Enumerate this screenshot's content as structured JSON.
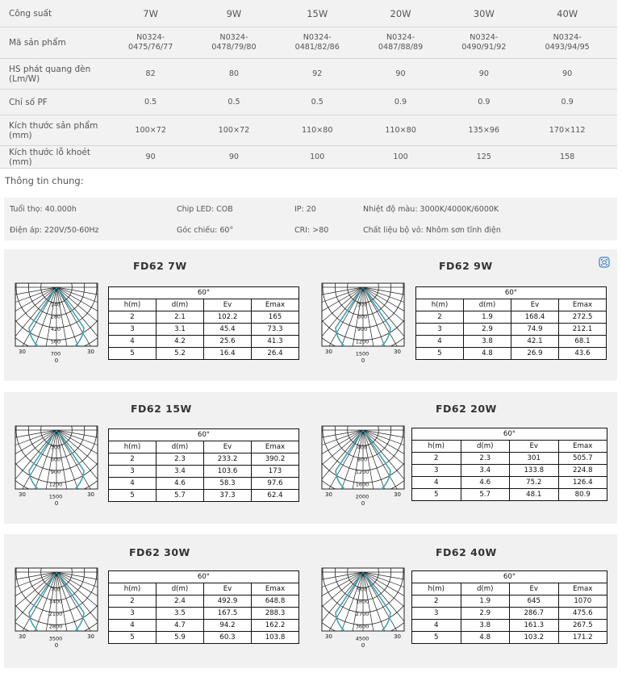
{
  "spec_table": {
    "header_label": "Công suất",
    "powers": [
      "7W",
      "9W",
      "15W",
      "20W",
      "30W",
      "40W"
    ],
    "rows": [
      {
        "label": "Mã sản phẩm",
        "values": [
          "N0324-\n0475/76/77",
          "N0324-\n0478/79/80",
          "N0324-\n0481/82/86",
          "N0324-\n0487/88/89",
          "N0324-\n0490/91/92",
          "N0324-\n0493/94/95"
        ]
      },
      {
        "label": "HS phát quang đèn\n(Lm/W)",
        "values": [
          "82",
          "80",
          "92",
          "90",
          "90",
          "90"
        ]
      },
      {
        "label": "Chỉ số PF",
        "values": [
          "0.5",
          "0.5",
          "0.5",
          "0.9",
          "0.9",
          "0.9"
        ]
      },
      {
        "label": "Kích thước sản phẩm\n(mm)",
        "values": [
          "100×72",
          "100×72",
          "110×80",
          "110×80",
          "135×96",
          "170×112"
        ]
      },
      {
        "label": "Kích thước lỗ khoét (mm)",
        "values": [
          "90",
          "90",
          "100",
          "100",
          "125",
          "158"
        ]
      }
    ]
  },
  "general": {
    "title": "Thông tin chung:",
    "lifetime": "Tuổi thọ: 40.000h",
    "chip": "Chip LED: COB",
    "ip": "IP: 20",
    "color_temp": "Nhiệt độ màu: 3000K/4000K/6000K",
    "voltage": "Điện áp: 220V/50-60Hz",
    "beam_angle": "Góc chiếu: 60°",
    "cri": "CRI: >80",
    "material": "Chất liệu bộ vỏ: Nhôm sơn tĩnh điện"
  },
  "icons": {
    "share": "share-icon"
  },
  "photometric": [
    {
      "title": "FD62 7W",
      "angle": "60°",
      "headers": [
        "h(m)",
        "d(m)",
        "Ev",
        "Emax"
      ],
      "rows": [
        [
          "2",
          "2.1",
          "102.2",
          "165"
        ],
        [
          "3",
          "3.1",
          "45.4",
          "73.3"
        ],
        [
          "4",
          "4.2",
          "25.6",
          "41.3"
        ],
        [
          "5",
          "5.2",
          "16.4",
          "26.4"
        ]
      ],
      "polar": {
        "rings": [
          "0",
          "140",
          "280",
          "420",
          "560",
          "700"
        ],
        "side": "30",
        "bottom": "0"
      }
    },
    {
      "title": "FD62 9W",
      "angle": "60°",
      "headers": [
        "h(m)",
        "d(m)",
        "Ev",
        "Emax"
      ],
      "rows": [
        [
          "2",
          "1.9",
          "168.4",
          "272.5"
        ],
        [
          "3",
          "2.9",
          "74.9",
          "212.1"
        ],
        [
          "4",
          "3.8",
          "42.1",
          "68.1"
        ],
        [
          "5",
          "4.8",
          "26.9",
          "43.6"
        ]
      ],
      "polar": {
        "rings": [
          "0",
          "300",
          "600",
          "900",
          "1200",
          "1500"
        ],
        "side": "30",
        "bottom": "0"
      }
    },
    {
      "title": "FD62 15W",
      "angle": "60°",
      "headers": [
        "h(m)",
        "d(m)",
        "Ev",
        "Emax"
      ],
      "rows": [
        [
          "2",
          "2.3",
          "233.2",
          "390.2"
        ],
        [
          "3",
          "3.4",
          "103.6",
          "173"
        ],
        [
          "4",
          "4.6",
          "58.3",
          "97.6"
        ],
        [
          "5",
          "5.7",
          "37.3",
          "62.4"
        ]
      ],
      "polar": {
        "rings": [
          "0",
          "300",
          "600",
          "900",
          "1200",
          "1500"
        ],
        "side": "30",
        "bottom": "0"
      }
    },
    {
      "title": "FD62 20W",
      "angle": "60°",
      "headers": [
        "h(m)",
        "d(m)",
        "Ev",
        "Emax"
      ],
      "rows": [
        [
          "2",
          "2.3",
          "301",
          "505.7"
        ],
        [
          "3",
          "3.4",
          "133.8",
          "224.8"
        ],
        [
          "4",
          "4.6",
          "75.2",
          "126.4"
        ],
        [
          "5",
          "5.7",
          "48.1",
          "80.9"
        ]
      ],
      "polar": {
        "rings": [
          "0",
          "400",
          "800",
          "1200",
          "1600",
          "2000"
        ],
        "side": "30",
        "bottom": "0"
      }
    },
    {
      "title": "FD62 30W",
      "angle": "60°",
      "headers": [
        "h(m)",
        "d(m)",
        "Ev",
        "Emax"
      ],
      "rows": [
        [
          "2",
          "2.4",
          "492.9",
          "648.8"
        ],
        [
          "3",
          "3.5",
          "167.5",
          "288.3"
        ],
        [
          "4",
          "4.7",
          "94.2",
          "162.2"
        ],
        [
          "5",
          "5.9",
          "60.3",
          "103.8"
        ]
      ],
      "polar": {
        "rings": [
          "0",
          "700",
          "1400",
          "2100",
          "2800",
          "3500"
        ],
        "side": "30",
        "bottom": "0"
      }
    },
    {
      "title": "FD62 40W",
      "angle": "60°",
      "headers": [
        "h(m)",
        "d(m)",
        "Ev",
        "Emax"
      ],
      "rows": [
        [
          "2",
          "1.9",
          "645",
          "1070"
        ],
        [
          "3",
          "2.9",
          "286.7",
          "475.6"
        ],
        [
          "4",
          "3.8",
          "161.3",
          "267.5"
        ],
        [
          "5",
          "4.8",
          "103.2",
          "171.2"
        ]
      ],
      "polar": {
        "rings": [
          "0",
          "900",
          "1800",
          "2700",
          "3600",
          "4500"
        ],
        "side": "30",
        "bottom": "0"
      }
    }
  ],
  "colors": {
    "curve": "#3aa6b9",
    "grid": "#222222",
    "panel_bg": "#f1f1f1",
    "table_bg": "#f2f2f2"
  }
}
